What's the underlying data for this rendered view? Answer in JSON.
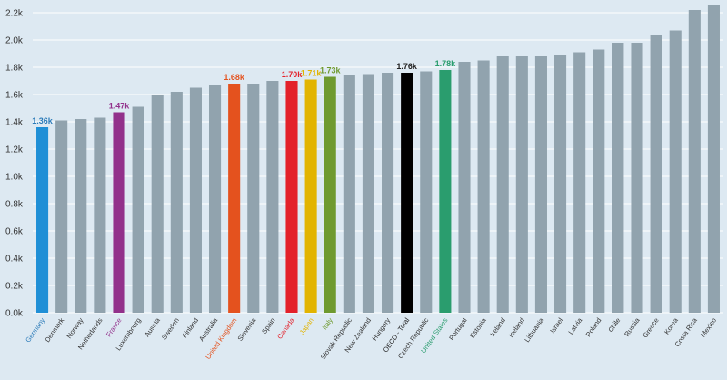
{
  "chart_data": {
    "type": "bar",
    "title": "",
    "xlabel": "",
    "ylabel": "",
    "ylim": [
      0,
      2200
    ],
    "yticks": [
      0,
      200,
      400,
      600,
      800,
      1000,
      1200,
      1400,
      1600,
      1800,
      2000,
      2200
    ],
    "ytick_labels": [
      "0.0k",
      "0.2k",
      "0.4k",
      "0.6k",
      "0.8k",
      "1.0k",
      "1.2k",
      "1.4k",
      "1.6k",
      "1.8k",
      "2.0k",
      "2.2k"
    ],
    "grid": true,
    "default_color": "#91a3ae",
    "categories": [
      "Germany",
      "Denmark",
      "Norway",
      "Netherlands",
      "France",
      "Luxembourg",
      "Austria",
      "Sweden",
      "Finland",
      "Australia",
      "United Kingdom",
      "Slovenia",
      "Spain",
      "Canada",
      "Japan",
      "Italy",
      "Slovak Republic",
      "New Zealand",
      "Hungary",
      "OECD - Total",
      "Czech Republic",
      "United States",
      "Portugal",
      "Estonia",
      "Ireland",
      "Iceland",
      "Lithuania",
      "Israel",
      "Latvia",
      "Poland",
      "Chile",
      "Russia",
      "Greece",
      "Korea",
      "Costa Rica",
      "Mexico"
    ],
    "values": [
      1360,
      1410,
      1420,
      1430,
      1470,
      1510,
      1600,
      1620,
      1650,
      1670,
      1680,
      1680,
      1700,
      1700,
      1710,
      1730,
      1740,
      1750,
      1760,
      1760,
      1770,
      1780,
      1840,
      1850,
      1880,
      1880,
      1880,
      1890,
      1910,
      1930,
      1980,
      1980,
      2040,
      2070,
      2220,
      2260
    ],
    "highlights": [
      {
        "category": "Germany",
        "color": "#1f8fd6",
        "label_color": "#2b7bb9",
        "value_label": "1.36k"
      },
      {
        "category": "France",
        "color": "#92318b",
        "label_color": "#92318b",
        "value_label": "1.47k"
      },
      {
        "category": "United Kingdom",
        "color": "#e4521e",
        "label_color": "#e4521e",
        "value_label": "1.68k"
      },
      {
        "category": "Canada",
        "color": "#e3212a",
        "label_color": "#e3212a",
        "value_label": "1.70k"
      },
      {
        "category": "Japan",
        "color": "#e2b400",
        "label_color": "#e2b400",
        "value_label": "1.71k"
      },
      {
        "category": "Italy",
        "color": "#6f9a2f",
        "label_color": "#6f9a2f",
        "value_label": "1.73k"
      },
      {
        "category": "OECD - Total",
        "color": "#000000",
        "label_color": "#222222",
        "value_label": "1.76k"
      },
      {
        "category": "United States",
        "color": "#2a9d6e",
        "label_color": "#2a9d6e",
        "value_label": "1.78k"
      }
    ]
  }
}
